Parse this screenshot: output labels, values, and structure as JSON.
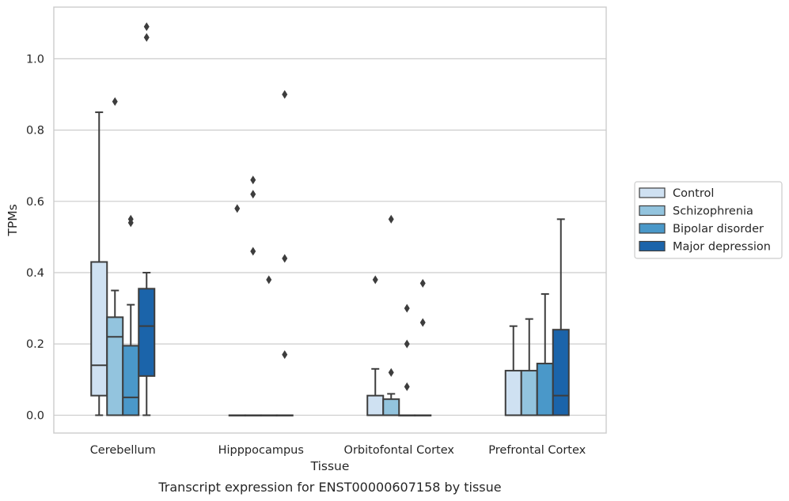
{
  "caption": "Transcript expression for ENST00000607158 by tissue",
  "chart_data": {
    "type": "box",
    "xlabel": "Tissue",
    "ylabel": "TPMs",
    "ylim": [
      -0.05,
      1.145
    ],
    "yticks": [
      0.0,
      0.2,
      0.4,
      0.6,
      0.8,
      1.0
    ],
    "ytick_labels": [
      "0.0",
      "0.2",
      "0.4",
      "0.6",
      "0.8",
      "1.0"
    ],
    "grid": "horizontal",
    "legend_position": "right-center",
    "categories": [
      "Cerebellum",
      "Hipppocampus",
      "Orbitofontal Cortex",
      "Prefrontal Cortex"
    ],
    "series": [
      {
        "name": "Control",
        "color": "#cfe1f2",
        "boxes": [
          {
            "whislo": 0.0,
            "q1": 0.055,
            "med": 0.14,
            "q3": 0.43,
            "whishi": 0.85,
            "fliers": []
          },
          {
            "whislo": 0.0,
            "q1": 0.0,
            "med": 0.0,
            "q3": 0.0,
            "whishi": 0.0,
            "fliers": [
              0.58
            ]
          },
          {
            "whislo": 0.0,
            "q1": 0.0,
            "med": 0.0,
            "q3": 0.055,
            "whishi": 0.13,
            "fliers": [
              0.38
            ]
          },
          {
            "whislo": 0.0,
            "q1": 0.0,
            "med": 0.0,
            "q3": 0.125,
            "whishi": 0.25,
            "fliers": []
          }
        ]
      },
      {
        "name": "Schizophrenia",
        "color": "#93c4de",
        "boxes": [
          {
            "whislo": 0.0,
            "q1": 0.0,
            "med": 0.22,
            "q3": 0.275,
            "whishi": 0.35,
            "fliers": [
              0.88
            ]
          },
          {
            "whislo": 0.0,
            "q1": 0.0,
            "med": 0.0,
            "q3": 0.0,
            "whishi": 0.0,
            "fliers": [
              0.46,
              0.62,
              0.66
            ]
          },
          {
            "whislo": 0.0,
            "q1": 0.0,
            "med": 0.0,
            "q3": 0.045,
            "whishi": 0.06,
            "fliers": [
              0.12,
              0.55
            ]
          },
          {
            "whislo": 0.0,
            "q1": 0.0,
            "med": 0.0,
            "q3": 0.125,
            "whishi": 0.27,
            "fliers": []
          }
        ]
      },
      {
        "name": "Bipolar disorder",
        "color": "#4a98c9",
        "boxes": [
          {
            "whislo": 0.0,
            "q1": 0.0,
            "med": 0.05,
            "q3": 0.195,
            "whishi": 0.31,
            "fliers": [
              0.54,
              0.55
            ]
          },
          {
            "whislo": 0.0,
            "q1": 0.0,
            "med": 0.0,
            "q3": 0.0,
            "whishi": 0.0,
            "fliers": [
              0.38
            ]
          },
          {
            "whislo": 0.0,
            "q1": 0.0,
            "med": 0.0,
            "q3": 0.0,
            "whishi": 0.0,
            "fliers": [
              0.08,
              0.2,
              0.3
            ]
          },
          {
            "whislo": 0.0,
            "q1": 0.0,
            "med": 0.0,
            "q3": 0.145,
            "whishi": 0.34,
            "fliers": []
          }
        ]
      },
      {
        "name": "Major depression",
        "color": "#1b64aa",
        "boxes": [
          {
            "whislo": 0.0,
            "q1": 0.11,
            "med": 0.25,
            "q3": 0.355,
            "whishi": 0.4,
            "fliers": [
              1.06,
              1.09
            ]
          },
          {
            "whislo": 0.0,
            "q1": 0.0,
            "med": 0.0,
            "q3": 0.0,
            "whishi": 0.0,
            "fliers": [
              0.17,
              0.44,
              0.9
            ]
          },
          {
            "whislo": 0.0,
            "q1": 0.0,
            "med": 0.0,
            "q3": 0.0,
            "whishi": 0.0,
            "fliers": [
              0.26,
              0.37
            ]
          },
          {
            "whislo": 0.0,
            "q1": 0.0,
            "med": 0.055,
            "q3": 0.24,
            "whishi": 0.55,
            "fliers": []
          }
        ]
      }
    ]
  }
}
